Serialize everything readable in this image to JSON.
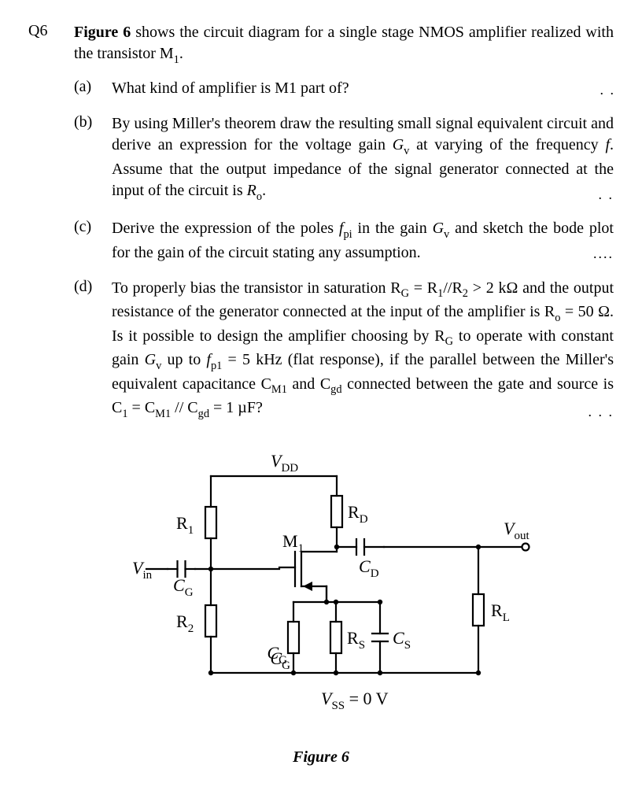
{
  "question_number": "Q6",
  "intro_prefix_bold": "Figure 6",
  "intro_rest": " shows the circuit diagram for a single stage NMOS amplifier realized with the transistor M",
  "intro_sub": "1",
  "intro_period": ".",
  "parts": {
    "a": {
      "label": "(a)",
      "text": "What kind of amplifier is M1 part of?",
      "mark": ". ."
    },
    "b": {
      "label": "(b)",
      "line1a": "By using Miller's theorem draw the resulting small signal equivalent circuit and derive an expression for the voltage gain ",
      "gv": "G",
      "gv_sub": "v",
      "line1b": " at varying of the frequency ",
      "f": "f",
      "line1c": ". Assume that the output impedance of the signal generator connected at the input of the circuit is ",
      "ro": "R",
      "ro_sub": "o",
      "line1d": ".",
      "mark": ". ."
    },
    "c": {
      "label": "(c)",
      "t1": "Derive the expression of the poles ",
      "fpi": "f",
      "fpi_sub": "pi",
      "t2": " in the gain ",
      "gv": "G",
      "gv_sub": "v",
      "t3": " and sketch the bode plot for the gain of the circuit stating any assumption.",
      "mark": "...."
    },
    "d": {
      "label": "(d)",
      "t1": "To properly bias the transistor in saturation R",
      "rg_sub": "G",
      "t1b": " = R",
      "r1_sub": "1",
      "t1c": "//R",
      "r2_sub": "2",
      "t1d": " > 2 kΩ and the output resistance of the generator connected at the input of the amplifier is R",
      "ro_sub": "o",
      "t1e": " = 50 Ω. Is it possible to design the amplifier choosing by R",
      "rg_sub2": "G",
      "t1f": " to operate with constant gain ",
      "gv": "G",
      "gv_sub": "v",
      "t2": " up to ",
      "fp1": "f",
      "fp1_sub": "p1",
      "t3": " = 5 kHz (flat response), if the parallel between the Miller's equivalent capacitance C",
      "cm1_sub": "M1",
      "t4": " and C",
      "cgd_sub": "gd",
      "t5": " connected between the gate and source is C",
      "c1_sub": "1",
      "t6": " = C",
      "cm1_sub2": "M1",
      "t7": " // C",
      "cgd_sub2": "gd",
      "t8": " = 1 µF?",
      "mark": ". . ."
    }
  },
  "figure": {
    "caption_prefix": "Figure 6",
    "labels": {
      "vdd": "V",
      "vdd_sub": "DD",
      "r1": "R",
      "r1_sub": "1",
      "r2": "R",
      "r2_sub": "2",
      "rd": "R",
      "rd_sub": "D",
      "rl": "R",
      "rl_sub": "L",
      "rs": "R",
      "rs_sub": "S",
      "m1": "M",
      "m1_sub": "1",
      "vin": "V",
      "vin_sub": "in",
      "vout": "V",
      "vout_sub": "out",
      "cg": "C",
      "cg_sub": "G",
      "cg2": "C",
      "cg2_sub": "G",
      "cd": "C",
      "cd_sub": "D",
      "cs": "C",
      "cs_sub": "S",
      "vss": "V",
      "vss_sub": "SS",
      "vss_eq": " = 0 V"
    },
    "style": {
      "stroke": "#000000",
      "stroke_width": 2.2,
      "font_size_label": 22,
      "font_size_sub": 15,
      "font_family": "Times New Roman, serif"
    }
  }
}
